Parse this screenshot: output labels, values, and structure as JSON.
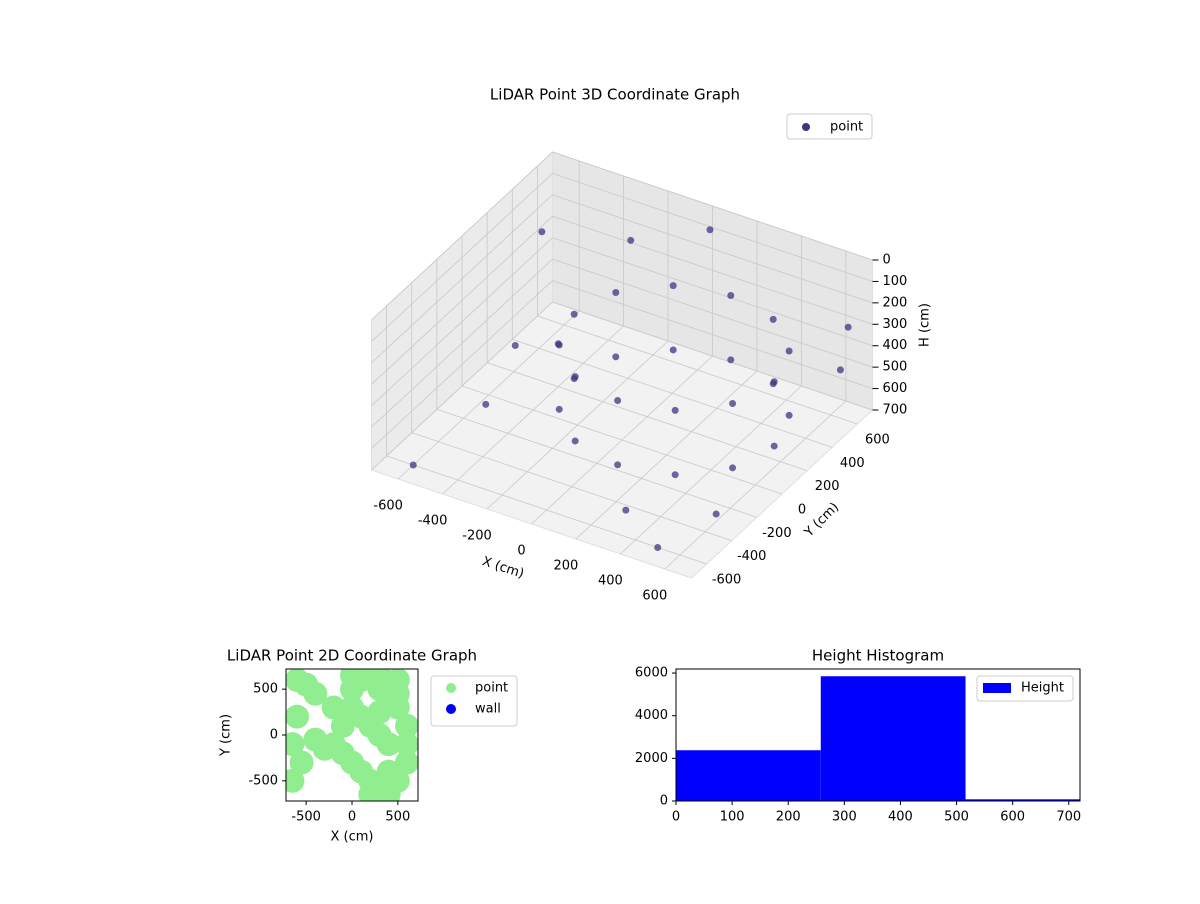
{
  "chart_data": [
    {
      "type": "scatter3d",
      "title": "LiDAR Point 3D Coordinate Graph",
      "xlabel": "X (cm)",
      "ylabel": "Y (cm)",
      "zlabel": "H (cm)",
      "xlim": [
        -720,
        720
      ],
      "ylim": [
        -720,
        720
      ],
      "zlim": [
        0,
        700
      ],
      "z_inverted": true,
      "xticks": [
        -600,
        -400,
        -200,
        0,
        200,
        400,
        600
      ],
      "yticks": [
        -600,
        -400,
        -200,
        0,
        200,
        400,
        600
      ],
      "zticks": [
        0,
        100,
        200,
        300,
        400,
        500,
        600,
        700
      ],
      "grid": true,
      "legend": "upper right",
      "series": [
        {
          "name": "point",
          "color": "#46327e",
          "x": [
            600,
            540,
            375,
            150,
            -75,
            -240,
            -300,
            -240,
            -75,
            150,
            375,
            540,
            600,
            540,
            375,
            150,
            -75,
            -240,
            -300,
            -240,
            -75,
            150,
            375,
            540,
            -650,
            -500,
            -400,
            700,
            650,
            -300,
            500,
            300,
            -600,
            0,
            650,
            -700
          ],
          "y": [
            150,
            375,
            540,
            600,
            540,
            375,
            150,
            -75,
            -240,
            -300,
            -240,
            -75,
            150,
            375,
            540,
            600,
            540,
            375,
            150,
            -75,
            -240,
            -300,
            -240,
            -75,
            300,
            -200,
            200,
            500,
            650,
            600,
            -600,
            -500,
            -600,
            700,
            -400,
            600
          ],
          "z": [
            300,
            300,
            300,
            300,
            300,
            300,
            300,
            300,
            300,
            300,
            300,
            300,
            600,
            600,
            600,
            600,
            600,
            600,
            600,
            600,
            600,
            600,
            600,
            600,
            650,
            600,
            500,
            400,
            300,
            200,
            700,
            650,
            700,
            100,
            600,
            300
          ]
        }
      ]
    },
    {
      "type": "scatter",
      "title": "LiDAR Point 2D Coordinate Graph",
      "xlabel": "X (cm)",
      "ylabel": "Y (cm)",
      "xlim": [
        -720,
        720
      ],
      "ylim": [
        -720,
        720
      ],
      "xticks": [
        -500,
        0,
        500
      ],
      "yticks": [
        -500,
        0,
        500
      ],
      "legend": "outside right",
      "series": [
        {
          "name": "point",
          "color": "#90ee90",
          "x": [
            -600,
            -500,
            -400,
            -650,
            -550,
            -300,
            -200,
            -100,
            0,
            100,
            200,
            300,
            400,
            500,
            600,
            100,
            200,
            300,
            400,
            500,
            0,
            100,
            200,
            300,
            400,
            -100,
            0,
            300,
            500,
            600,
            -600,
            -400,
            -200,
            -650,
            200,
            400,
            600,
            0,
            300,
            500
          ],
          "y": [
            600,
            550,
            450,
            -100,
            -300,
            -150,
            -100,
            -200,
            -300,
            -400,
            -500,
            -600,
            -650,
            -500,
            -300,
            600,
            650,
            500,
            400,
            300,
            300,
            200,
            100,
            0,
            -100,
            100,
            500,
            650,
            600,
            100,
            200,
            -50,
            300,
            -500,
            -650,
            -400,
            -100,
            650,
            250,
            450
          ]
        },
        {
          "name": "wall",
          "color": "#0000ff",
          "x": [],
          "y": []
        }
      ]
    },
    {
      "type": "histogram",
      "title": "Height Histogram",
      "bins": [
        0,
        258,
        516,
        774
      ],
      "values": [
        2380,
        5850,
        80
      ],
      "color": "#0000ff",
      "series_name": "Height",
      "xlim": [
        0,
        720
      ],
      "ylim": [
        0,
        6190
      ],
      "xticks": [
        0,
        100,
        200,
        300,
        400,
        500,
        600,
        700
      ],
      "yticks": [
        0,
        2000,
        4000,
        6000
      ],
      "legend": "upper right"
    }
  ]
}
